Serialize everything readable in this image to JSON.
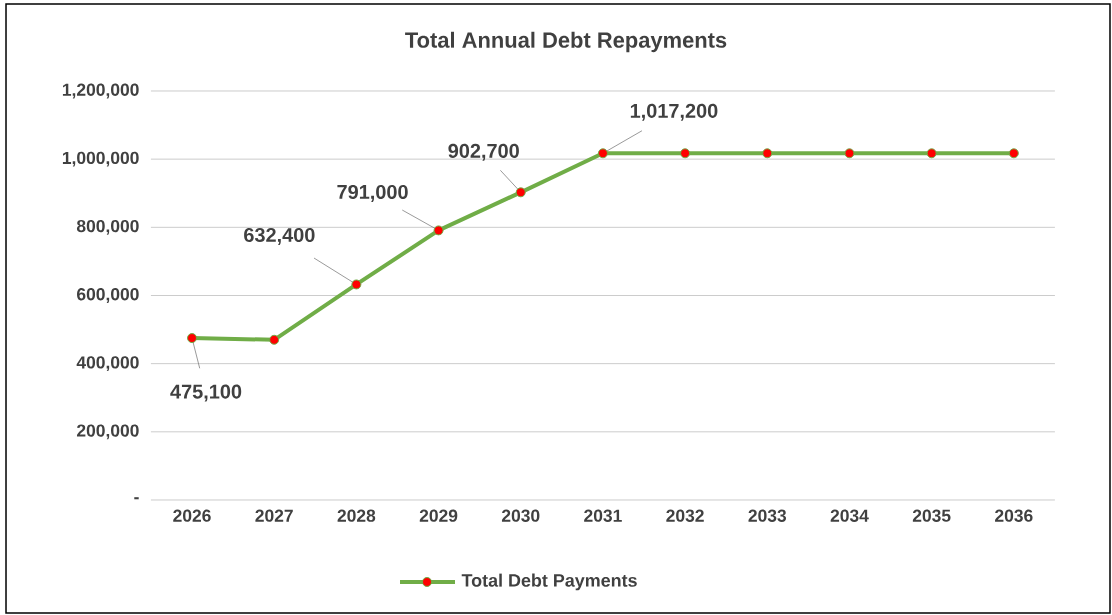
{
  "chart_data": {
    "type": "line",
    "title": "Total Annual Debt Repayments",
    "categories": [
      "2026",
      "2027",
      "2028",
      "2029",
      "2030",
      "2031",
      "2032",
      "2033",
      "2034",
      "2035",
      "2036"
    ],
    "series": [
      {
        "name": "Total Debt Payments",
        "color": "#70ad47",
        "values": [
          475100,
          470000,
          632400,
          791000,
          902700,
          1017200,
          1017200,
          1017200,
          1017200,
          1017200,
          1017200
        ],
        "value_labels": [
          "475,100",
          null,
          "632,400",
          "791,000",
          "902,700",
          "1,017,200",
          null,
          null,
          null,
          null,
          null
        ]
      }
    ],
    "ylim": [
      0,
      1200000
    ],
    "yticks": [
      {
        "value": 0,
        "label": "-"
      },
      {
        "value": 200000,
        "label": "200,000"
      },
      {
        "value": 400000,
        "label": "400,000"
      },
      {
        "value": 600000,
        "label": "600,000"
      },
      {
        "value": 800000,
        "label": "800,000"
      },
      {
        "value": 1000000,
        "label": "1,000,000"
      },
      {
        "value": 1200000,
        "label": "1,200,000"
      }
    ],
    "grid": "y",
    "legend": "bottom",
    "marker": "circle",
    "line_style": "solid"
  }
}
